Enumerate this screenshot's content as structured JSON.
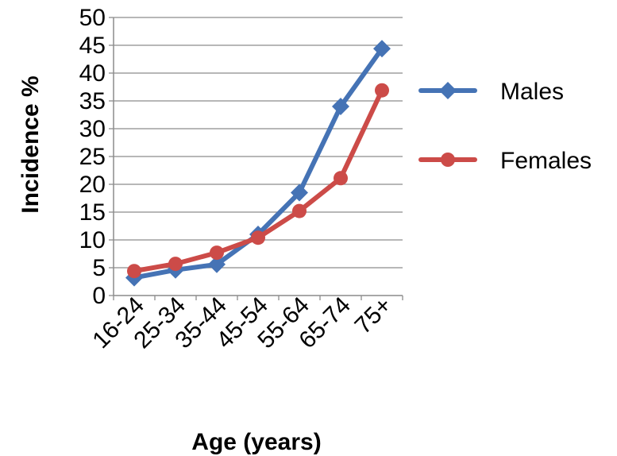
{
  "chart_data": {
    "type": "line",
    "title": "",
    "xlabel": "Age (years)",
    "ylabel": "Incidence %",
    "categories": [
      "16-24",
      "25-34",
      "35-44",
      "45-54",
      "55-64",
      "65-74",
      "75+"
    ],
    "ylim": [
      0,
      50
    ],
    "yticks": [
      0,
      5,
      10,
      15,
      20,
      25,
      30,
      35,
      40,
      45,
      50
    ],
    "grid": true,
    "legend_position": "right",
    "series": [
      {
        "name": "Males",
        "color": "#4573b5",
        "marker": "diamond",
        "values": [
          3.2,
          4.6,
          5.6,
          11.0,
          18.5,
          34.0,
          44.4
        ]
      },
      {
        "name": "Females",
        "color": "#cc4b48",
        "marker": "circle",
        "values": [
          4.4,
          5.7,
          7.7,
          10.4,
          15.2,
          21.1,
          36.9
        ]
      }
    ]
  }
}
